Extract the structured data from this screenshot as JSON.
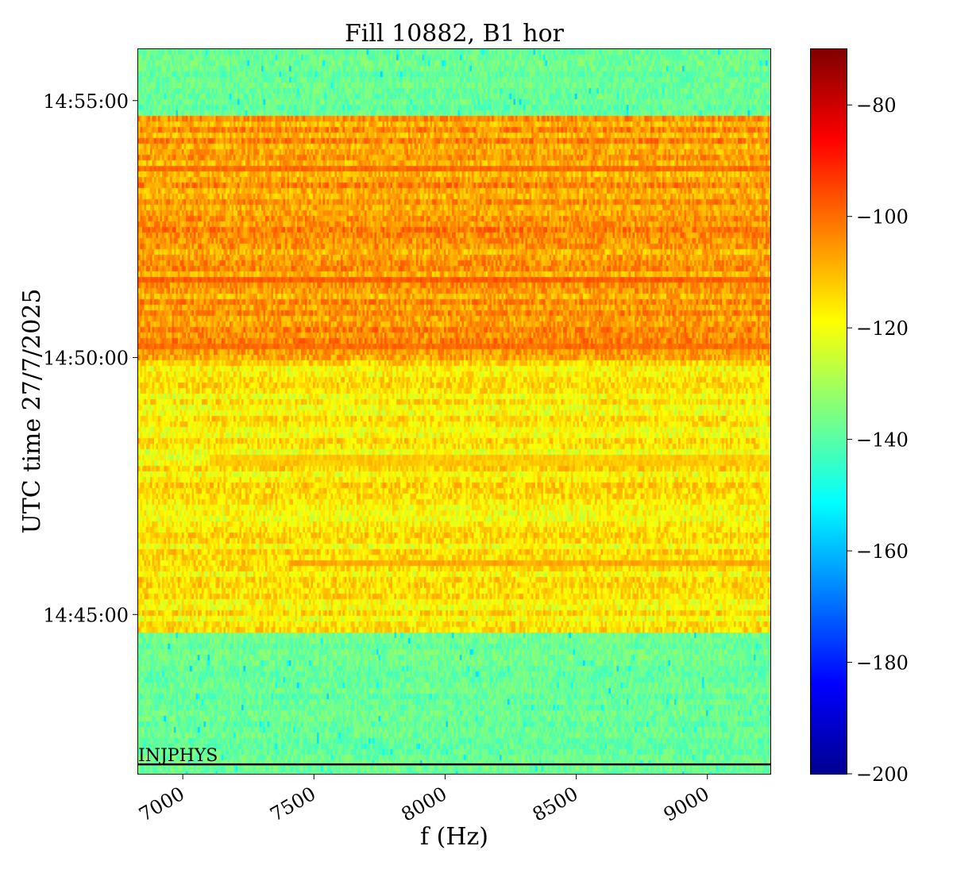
{
  "chart_data": {
    "type": "heatmap",
    "title": "Fill 10882, B1 hor",
    "xlabel": "f (Hz)",
    "ylabel": "UTC time 27/7/2025",
    "xlim": [
      6830,
      9240
    ],
    "x_ticks": [
      7000,
      7500,
      8000,
      8500,
      9000
    ],
    "x_tick_labels": [
      "7000",
      "7500",
      "8000",
      "8500",
      "9000"
    ],
    "y_range_time": [
      "14:41:54",
      "14:56:00"
    ],
    "y_ticks": [
      "14:45:00",
      "14:50:00",
      "14:55:00"
    ],
    "colorscale": "jet",
    "colorbar": {
      "range": [
        -200,
        -70
      ],
      "ticks": [
        -80,
        -100,
        -120,
        -140,
        -160,
        -180,
        -200
      ],
      "tick_labels": [
        "−80",
        "−100",
        "−120",
        "−140",
        "−160",
        "−180",
        "−200"
      ]
    },
    "regions": [
      {
        "from": "14:41:54",
        "to": "14:44:40",
        "level": -138,
        "description_value": "background"
      },
      {
        "from": "14:44:40",
        "to": "14:49:55",
        "level": -117,
        "description_value": "elevated"
      },
      {
        "from": "14:49:55",
        "to": "14:54:40",
        "level": -106,
        "description_value": "high"
      },
      {
        "from": "14:54:40",
        "to": "14:56:00",
        "level": -138,
        "description_value": "background"
      }
    ],
    "strong_lines": [
      {
        "time": "14:46:00",
        "level": -108,
        "f_from": 7400
      },
      {
        "time": "14:48:00",
        "level": -112,
        "f_from": 7100
      },
      {
        "time": "14:50:15",
        "level": -100,
        "f_from": 6830
      },
      {
        "time": "14:51:30",
        "level": -98,
        "f_from": 6830
      },
      {
        "time": "14:53:40",
        "level": -100,
        "f_from": 6830
      }
    ],
    "annotation": {
      "text": "INJPHYS",
      "time": "14:42:05"
    }
  }
}
